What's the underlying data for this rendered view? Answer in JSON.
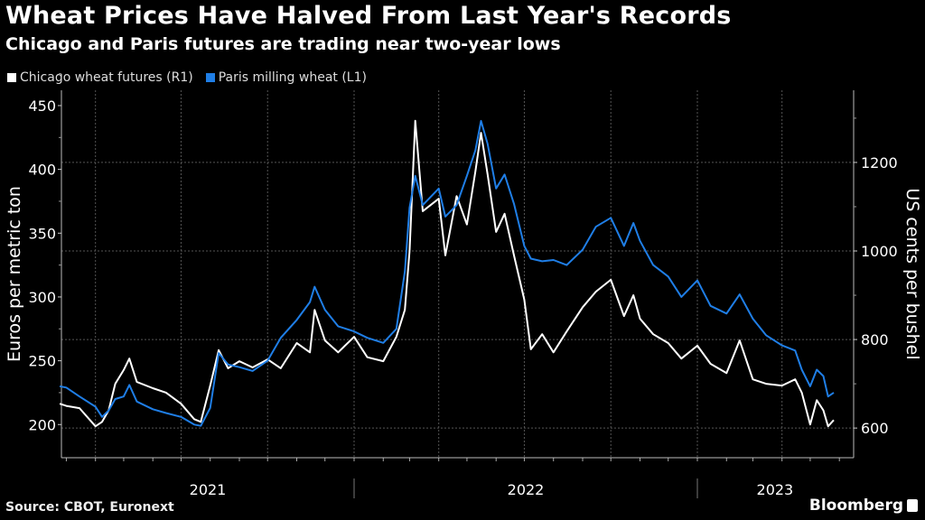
{
  "chart_data": {
    "type": "line",
    "title": "Wheat Prices Have Halved From Last Year's Records",
    "subtitle": "Chicago and Paris futures are trading near two-year lows",
    "source": "Source: CBOT, Euronext",
    "brand": "Bloomberg",
    "ylabel_left": "Euros per metric ton",
    "ylabel_right": "US cents per bushel",
    "ylim_left": [
      174,
      462
    ],
    "ylim_right": [
      533,
      1363
    ],
    "yticks_left": [
      200,
      250,
      300,
      350,
      400,
      450
    ],
    "yticks_right": [
      600,
      800,
      1000,
      1200
    ],
    "xlim": [
      "2021-02-22",
      "2023-06-15"
    ],
    "year_labels": [
      {
        "label": "2021",
        "start": "2021-02-22",
        "end": "2022-01-01"
      },
      {
        "label": "2022",
        "start": "2022-01-01",
        "end": "2023-01-01"
      },
      {
        "label": "2023",
        "start": "2023-01-01",
        "end": "2023-06-15"
      }
    ],
    "grid": true,
    "legend_position": "top-left",
    "dates": [
      "2021-02-22",
      "2021-03-01",
      "2021-03-15",
      "2021-04-01",
      "2021-04-08",
      "2021-04-15",
      "2021-04-22",
      "2021-05-01",
      "2021-05-07",
      "2021-05-15",
      "2021-06-01",
      "2021-06-15",
      "2021-07-01",
      "2021-07-15",
      "2021-07-22",
      "2021-08-01",
      "2021-08-10",
      "2021-08-20",
      "2021-09-01",
      "2021-09-15",
      "2021-10-01",
      "2021-10-15",
      "2021-11-01",
      "2021-11-15",
      "2021-11-20",
      "2021-12-01",
      "2021-12-15",
      "2022-01-01",
      "2022-01-15",
      "2022-02-01",
      "2022-02-15",
      "2022-02-24",
      "2022-03-01",
      "2022-03-07",
      "2022-03-15",
      "2022-04-01",
      "2022-04-08",
      "2022-04-20",
      "2022-05-01",
      "2022-05-10",
      "2022-05-16",
      "2022-05-23",
      "2022-06-01",
      "2022-06-10",
      "2022-06-20",
      "2022-07-01",
      "2022-07-08",
      "2022-07-20",
      "2022-08-01",
      "2022-08-15",
      "2022-09-01",
      "2022-09-15",
      "2022-10-01",
      "2022-10-15",
      "2022-10-25",
      "2022-11-01",
      "2022-11-15",
      "2022-12-01",
      "2022-12-15",
      "2023-01-01",
      "2023-01-15",
      "2023-02-01",
      "2023-02-15",
      "2023-03-01",
      "2023-03-15",
      "2023-04-01",
      "2023-04-15",
      "2023-04-22",
      "2023-05-01",
      "2023-05-08",
      "2023-05-15",
      "2023-05-20",
      "2023-05-26"
    ],
    "series": [
      {
        "name": "Chicago wheat futures (R1)",
        "axis": "right",
        "color": "#ffffff",
        "values": [
          655,
          650,
          645,
          604,
          614,
          640,
          700,
          731,
          757,
          704,
          690,
          680,
          655,
          620,
          614,
          696,
          776,
          735,
          751,
          737,
          755,
          735,
          792,
          771,
          867,
          798,
          771,
          806,
          760,
          751,
          806,
          867,
          1000,
          1294,
          1090,
          1118,
          990,
          1124,
          1060,
          1180,
          1267,
          1173,
          1043,
          1084,
          990,
          890,
          778,
          812,
          771,
          818,
          873,
          908,
          935,
          853,
          900,
          847,
          812,
          792,
          757,
          786,
          745,
          724,
          798,
          710,
          700,
          696,
          710,
          680,
          608,
          663,
          640,
          604,
          618
        ]
      },
      {
        "name": "Paris milling wheat (L1)",
        "axis": "left",
        "color": "#1f7ee6",
        "values": [
          230,
          229,
          222,
          214,
          206,
          211,
          220,
          222,
          231,
          218,
          212,
          209,
          206,
          200,
          199,
          213,
          256,
          247,
          245,
          242,
          250,
          268,
          282,
          296,
          308,
          290,
          277,
          273,
          268,
          264,
          275,
          320,
          370,
          395,
          372,
          385,
          363,
          372,
          395,
          415,
          438,
          420,
          385,
          396,
          373,
          340,
          330,
          328,
          329,
          325,
          337,
          355,
          362,
          340,
          358,
          344,
          325,
          316,
          300,
          313,
          293,
          287,
          302,
          283,
          270,
          262,
          258,
          243,
          230,
          243,
          238,
          222,
          225
        ]
      }
    ]
  }
}
